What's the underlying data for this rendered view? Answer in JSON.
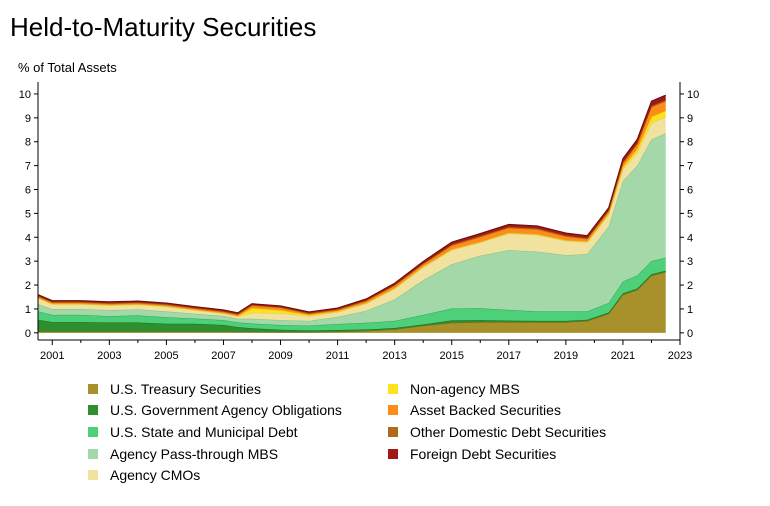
{
  "chart_data": {
    "type": "area",
    "stacked": true,
    "title": "Held-to-Maturity Securities",
    "ylabel": "% of Total Assets",
    "xlabel": "",
    "xlim": [
      2000.5,
      2023
    ],
    "ylim": [
      -0.3,
      10.5
    ],
    "x_ticks": [
      2001,
      2003,
      2005,
      2007,
      2009,
      2011,
      2013,
      2015,
      2017,
      2019,
      2021,
      2023
    ],
    "y_ticks": [
      0,
      1,
      2,
      3,
      4,
      5,
      6,
      7,
      8,
      9,
      10
    ],
    "grid": false,
    "right_axis": true,
    "legend_position": "bottom",
    "x": [
      2000.5,
      2001,
      2002,
      2003,
      2004,
      2005,
      2006,
      2007,
      2007.5,
      2008,
      2009,
      2010,
      2011,
      2012,
      2013,
      2014,
      2015,
      2016,
      2017,
      2018,
      2019,
      2019.75,
      2020.5,
      2021,
      2021.5,
      2022,
      2022.5
    ],
    "series": [
      {
        "name": "U.S. Treasury Securities",
        "color": "#a8912a",
        "edge": "#7d6a12",
        "values": [
          0.05,
          0.05,
          0.05,
          0.05,
          0.05,
          0.05,
          0.05,
          0.05,
          0.04,
          0.04,
          0.03,
          0.03,
          0.05,
          0.08,
          0.15,
          0.3,
          0.42,
          0.45,
          0.45,
          0.45,
          0.45,
          0.5,
          0.8,
          1.6,
          1.8,
          2.4,
          2.55
        ]
      },
      {
        "name": "U.S. Government Agency Obligations",
        "color": "#2f8f2f",
        "edge": "#1a6a1a",
        "values": [
          0.5,
          0.4,
          0.4,
          0.38,
          0.38,
          0.33,
          0.33,
          0.28,
          0.2,
          0.15,
          0.1,
          0.07,
          0.07,
          0.06,
          0.05,
          0.05,
          0.1,
          0.08,
          0.06,
          0.05,
          0.05,
          0.05,
          0.05,
          0.05,
          0.05,
          0.05,
          0.05
        ]
      },
      {
        "name": "U.S. State and Municipal Debt",
        "color": "#4ed07a",
        "edge": "#2aa857",
        "values": [
          0.35,
          0.3,
          0.3,
          0.27,
          0.3,
          0.27,
          0.22,
          0.2,
          0.2,
          0.2,
          0.2,
          0.2,
          0.25,
          0.28,
          0.3,
          0.4,
          0.5,
          0.5,
          0.45,
          0.4,
          0.4,
          0.35,
          0.4,
          0.5,
          0.55,
          0.55,
          0.55
        ]
      },
      {
        "name": "Agency Pass-through MBS",
        "color": "#a5d8a8",
        "edge": "#7fc287",
        "values": [
          0.3,
          0.25,
          0.25,
          0.25,
          0.25,
          0.25,
          0.2,
          0.18,
          0.15,
          0.2,
          0.2,
          0.2,
          0.3,
          0.5,
          0.9,
          1.45,
          1.85,
          2.2,
          2.5,
          2.5,
          2.35,
          2.4,
          3.2,
          4.2,
          4.6,
          5.1,
          5.2
        ]
      },
      {
        "name": "Agency CMOs",
        "color": "#f2e2a0",
        "edge": "#dcc46a",
        "values": [
          0.25,
          0.2,
          0.2,
          0.2,
          0.2,
          0.2,
          0.15,
          0.1,
          0.1,
          0.25,
          0.3,
          0.2,
          0.2,
          0.3,
          0.45,
          0.55,
          0.6,
          0.55,
          0.7,
          0.7,
          0.6,
          0.5,
          0.5,
          0.5,
          0.55,
          0.7,
          0.7
        ]
      },
      {
        "name": "Non-agency MBS",
        "color": "#ffe21a",
        "edge": "#e0c000",
        "values": [
          0.02,
          0.02,
          0.02,
          0.02,
          0.02,
          0.02,
          0.02,
          0.02,
          0.02,
          0.2,
          0.12,
          0.05,
          0.04,
          0.03,
          0.03,
          0.03,
          0.03,
          0.03,
          0.03,
          0.03,
          0.03,
          0.03,
          0.05,
          0.1,
          0.15,
          0.25,
          0.25
        ]
      },
      {
        "name": "Asset Backed Securities",
        "color": "#ff8c1a",
        "edge": "#e06800",
        "values": [
          0.05,
          0.05,
          0.05,
          0.05,
          0.05,
          0.05,
          0.05,
          0.05,
          0.05,
          0.1,
          0.1,
          0.05,
          0.05,
          0.08,
          0.1,
          0.1,
          0.15,
          0.2,
          0.2,
          0.2,
          0.15,
          0.1,
          0.1,
          0.15,
          0.2,
          0.4,
          0.4
        ]
      },
      {
        "name": "Other Domestic Debt Securities",
        "color": "#b06a1e",
        "edge": "#8a4d10",
        "values": [
          0.03,
          0.03,
          0.03,
          0.03,
          0.03,
          0.03,
          0.03,
          0.03,
          0.03,
          0.03,
          0.03,
          0.03,
          0.03,
          0.03,
          0.03,
          0.03,
          0.05,
          0.05,
          0.05,
          0.05,
          0.05,
          0.04,
          0.04,
          0.05,
          0.05,
          0.05,
          0.05
        ]
      },
      {
        "name": "Foreign Debt Securities",
        "color": "#a01818",
        "edge": "#6e0c0c",
        "values": [
          0.05,
          0.05,
          0.05,
          0.05,
          0.05,
          0.05,
          0.05,
          0.05,
          0.05,
          0.05,
          0.05,
          0.05,
          0.05,
          0.06,
          0.07,
          0.08,
          0.1,
          0.1,
          0.1,
          0.1,
          0.1,
          0.1,
          0.1,
          0.15,
          0.15,
          0.2,
          0.2
        ]
      }
    ],
    "legend": {
      "left": [
        "U.S. Treasury Securities",
        "U.S. Government Agency Obligations",
        "U.S. State and Municipal Debt",
        "Agency Pass-through MBS",
        "Agency CMOs"
      ],
      "right": [
        "Non-agency MBS",
        "Asset Backed Securities",
        "Other Domestic Debt Securities",
        "Foreign Debt Securities"
      ]
    }
  }
}
